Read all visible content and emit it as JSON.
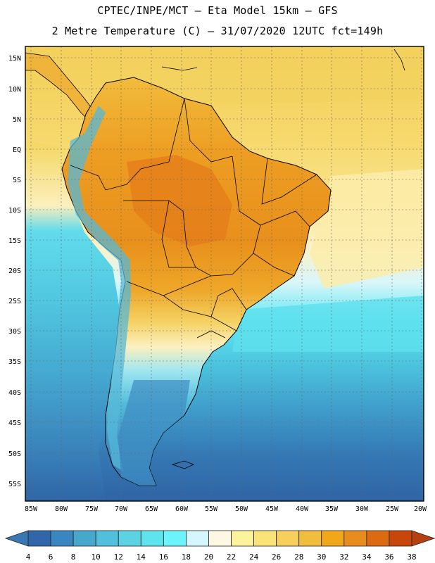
{
  "title": {
    "line1": "CPTEC/INPE/MCT –  Eta Model 15km – GFS",
    "line2": "2 Metre Temperature (C) – 31/07/2020 12UTC fct=149h"
  },
  "map": {
    "lat_labels": [
      "15N",
      "10N",
      "5N",
      "EQ",
      "5S",
      "10S",
      "15S",
      "20S",
      "25S",
      "30S",
      "35S",
      "40S",
      "45S",
      "50S",
      "55S"
    ],
    "lon_labels": [
      "85W",
      "80W",
      "75W",
      "70W",
      "65W",
      "60W",
      "55W",
      "50W",
      "45W",
      "40W",
      "35W",
      "30W",
      "25W",
      "20W"
    ]
  },
  "colorbar": {
    "labels": [
      "4",
      "6",
      "8",
      "10",
      "12",
      "14",
      "16",
      "18",
      "20",
      "22",
      "24",
      "26",
      "28",
      "30",
      "32",
      "34",
      "36",
      "38"
    ],
    "low_color": "#3a78b4",
    "high_color": "#b8400e",
    "colors": [
      "#3167a8",
      "#3a86c0",
      "#48a8cc",
      "#52c0dc",
      "#5cd2e2",
      "#5fe4ee",
      "#6cf4fc",
      "#d4f6fc",
      "#fdf8e4",
      "#fcf49c",
      "#fae478",
      "#f6d05a",
      "#f0bd3c",
      "#f0a81a",
      "#e88c1e",
      "#dc6a10",
      "#c8460c"
    ]
  },
  "colors": {
    "ocean_deep": "#3067a8",
    "ocean_mid": "#49b8d8",
    "ocean_warm": "#f5d66a",
    "land_hot": "#e8921e",
    "land_cool": "#45a0c8"
  }
}
